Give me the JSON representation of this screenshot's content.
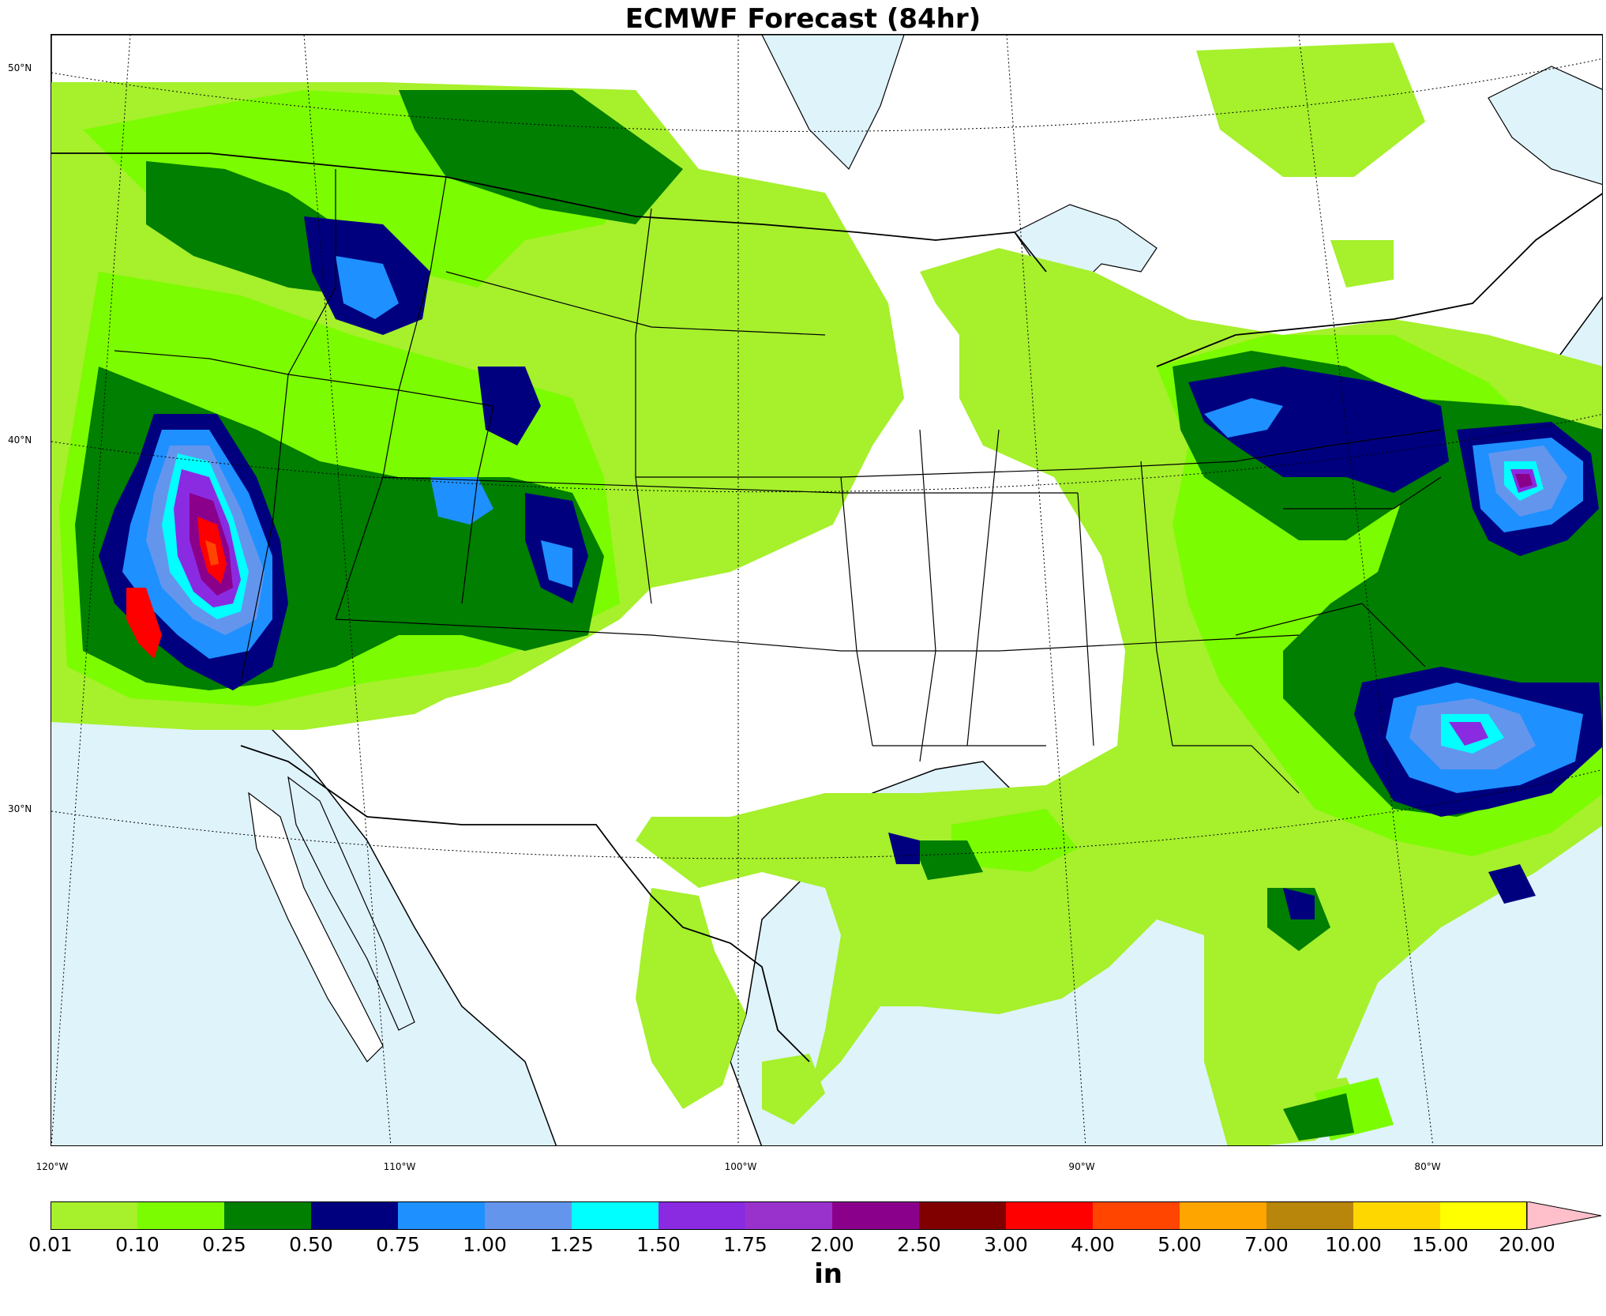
{
  "title": "ECMWF Forecast (84hr)",
  "lat_labels": [
    "50°N",
    "40°N",
    "30°N"
  ],
  "lon_labels": [
    "120°W",
    "110°W",
    "100°W",
    "90°W",
    "80°W"
  ],
  "colorbar": {
    "units": "in",
    "extend": "max",
    "ticks": [
      "0.01",
      "0.10",
      "0.25",
      "0.50",
      "0.75",
      "1.00",
      "1.25",
      "1.50",
      "1.75",
      "2.00",
      "2.50",
      "3.00",
      "4.00",
      "5.00",
      "7.00",
      "10.00",
      "15.00",
      "20.00"
    ],
    "colors": [
      "#a6f02c",
      "#7cfc00",
      "#007f00",
      "#00007f",
      "#1e90ff",
      "#6495ed",
      "#00ffff",
      "#8a2be2",
      "#9932cc",
      "#8b008b",
      "#800000",
      "#ff0000",
      "#ff4500",
      "#ffa500",
      "#b8860b",
      "#ffd700",
      "#ffff00"
    ],
    "extend_color": "#ffc0cb"
  },
  "colors": {
    "ocean": "#dff3fb",
    "land": "#ffffff"
  }
}
